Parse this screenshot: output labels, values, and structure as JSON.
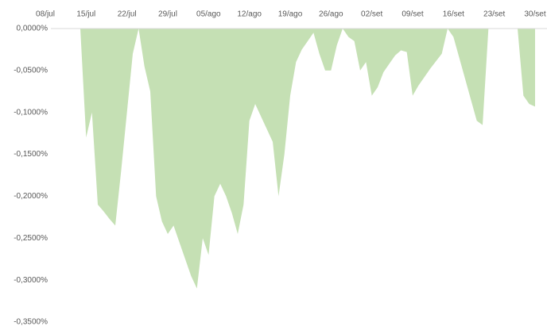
{
  "chart_data": {
    "type": "area",
    "color": "#c5e0b4",
    "categories": [
      "08/jul",
      null,
      null,
      null,
      null,
      null,
      null,
      "15/jul",
      null,
      null,
      null,
      null,
      null,
      null,
      "22/jul",
      null,
      null,
      null,
      null,
      null,
      null,
      "29/jul",
      null,
      null,
      null,
      null,
      null,
      null,
      "05/ago",
      null,
      null,
      null,
      null,
      null,
      null,
      "12/ago",
      null,
      null,
      null,
      null,
      null,
      null,
      "19/ago",
      null,
      null,
      null,
      null,
      null,
      null,
      "26/ago",
      null,
      null,
      null,
      null,
      null,
      null,
      "02/set",
      null,
      null,
      null,
      null,
      null,
      null,
      "09/set",
      null,
      null,
      null,
      null,
      null,
      null,
      "16/set",
      null,
      null,
      null,
      null,
      null,
      null,
      "23/set",
      null,
      null,
      null,
      null,
      null,
      null,
      "30/set"
    ],
    "values": [
      0,
      0,
      0,
      0,
      0,
      0,
      0,
      -0.13,
      -0.1,
      -0.21,
      -0.218,
      -0.227,
      -0.235,
      -0.17,
      -0.1,
      -0.03,
      0,
      -0.045,
      -0.075,
      -0.2,
      -0.23,
      -0.245,
      -0.235,
      -0.255,
      -0.275,
      -0.295,
      -0.31,
      -0.25,
      -0.27,
      -0.2,
      -0.185,
      -0.2,
      -0.22,
      -0.245,
      -0.21,
      -0.11,
      -0.09,
      -0.105,
      -0.12,
      -0.135,
      -0.2,
      -0.15,
      -0.08,
      -0.04,
      -0.025,
      -0.015,
      -0.005,
      -0.03,
      -0.05,
      -0.05,
      -0.02,
      0,
      -0.01,
      -0.015,
      -0.05,
      -0.04,
      -0.08,
      -0.07,
      -0.052,
      -0.042,
      -0.032,
      -0.026,
      -0.028,
      -0.08,
      -0.068,
      -0.058,
      -0.048,
      -0.039,
      -0.03,
      0,
      -0.01,
      -0.035,
      -0.06,
      -0.085,
      -0.11,
      -0.115,
      0,
      0,
      0,
      0,
      0,
      0,
      -0.08,
      -0.09,
      -0.093
    ],
    "ylim": [
      -0.35,
      0
    ],
    "yticks": [
      {
        "value": 0,
        "label": "0,0000%"
      },
      {
        "value": -0.05,
        "label": "-0,0500%"
      },
      {
        "value": -0.1,
        "label": "-0,1000%"
      },
      {
        "value": -0.15,
        "label": "-0,1500%"
      },
      {
        "value": -0.2,
        "label": "-0,2000%"
      },
      {
        "value": -0.25,
        "label": "-0,2500%"
      },
      {
        "value": -0.3,
        "label": "-0,3000%"
      },
      {
        "value": -0.35,
        "label": "-0,3500%"
      }
    ]
  }
}
